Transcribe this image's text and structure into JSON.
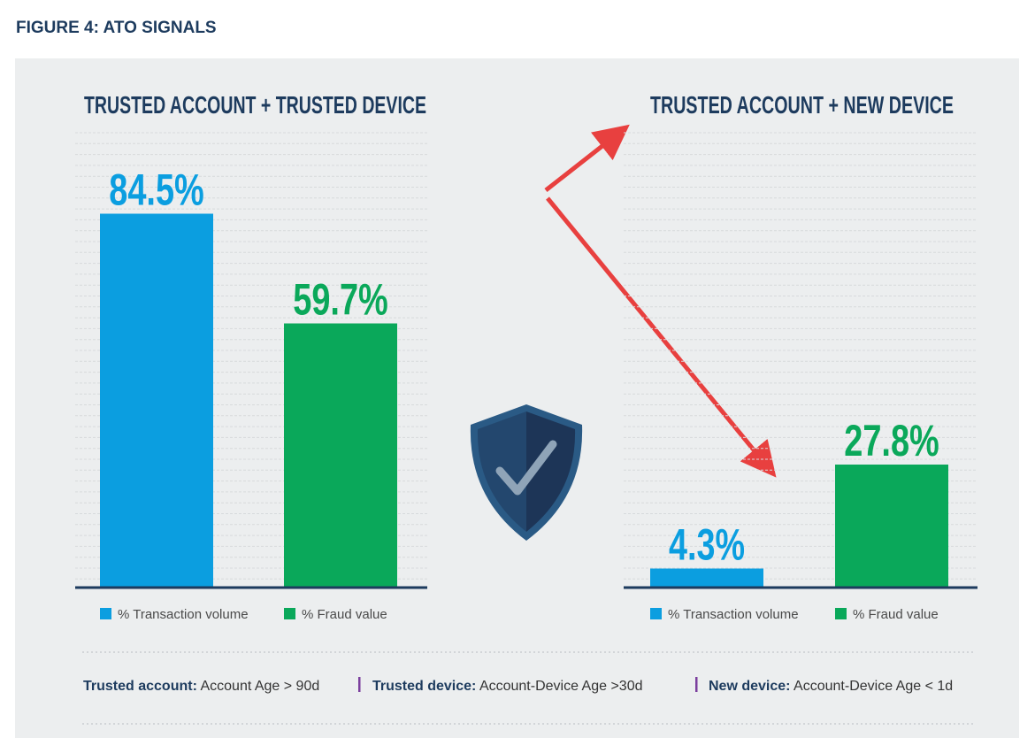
{
  "figure_title": "FIGURE 4: ATO SIGNALS",
  "chart_data": [
    {
      "type": "bar",
      "title": "TRUSTED ACCOUNT + TRUSTED DEVICE",
      "categories": [
        null
      ],
      "series": [
        {
          "name": "% Transaction volume",
          "color": "#0b9ee0",
          "values": [
            84.5
          ],
          "value_labels": [
            "84.5%"
          ]
        },
        {
          "name": "% Fraud value",
          "color": "#0aa85a",
          "values": [
            59.7
          ],
          "value_labels": [
            "59.7%"
          ]
        }
      ],
      "ylim": [
        0,
        100
      ]
    },
    {
      "type": "bar",
      "title": "TRUSTED ACCOUNT + NEW DEVICE",
      "categories": [
        null
      ],
      "series": [
        {
          "name": "% Transaction volume",
          "color": "#0b9ee0",
          "values": [
            4.3
          ],
          "value_labels": [
            "4.3%"
          ]
        },
        {
          "name": "% Fraud value",
          "color": "#0aa85a",
          "values": [
            27.8
          ],
          "value_labels": [
            "27.8%"
          ]
        }
      ],
      "ylim": [
        0,
        100
      ]
    }
  ],
  "footer": {
    "items": [
      {
        "term": "Trusted account:",
        "definition": " Account Age > 90d"
      },
      {
        "term": "Trusted device:",
        "definition": " Account-Device Age >30d"
      },
      {
        "term": "New device:",
        "definition": " Account-Device Age < 1d"
      }
    ]
  }
}
